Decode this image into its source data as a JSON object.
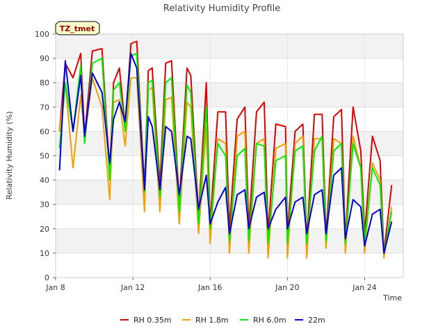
{
  "chart_data": {
    "type": "line",
    "title": "Relativity Humidity Profile",
    "xlabel": "Time",
    "ylabel": "Relativity Humidity (%)",
    "badge": "TZ_tmet",
    "ylim": [
      0,
      100
    ],
    "yticks": [
      "0",
      "10",
      "20",
      "30",
      "40",
      "50",
      "60",
      "70",
      "80",
      "90",
      "100"
    ],
    "xlim_days": [
      0,
      18
    ],
    "xticks": [
      {
        "day": 0,
        "label": "Jan 8"
      },
      {
        "day": 4,
        "label": "Jan 12"
      },
      {
        "day": 8,
        "label": "Jan 16"
      },
      {
        "day": 12,
        "label": "Jan 20"
      },
      {
        "day": 16,
        "label": "Jan 24"
      }
    ],
    "grid": true,
    "legend_position": "bottom",
    "series": [
      {
        "name": "RH 0.35m",
        "color": "#dd0000",
        "x": [
          0.2,
          0.5,
          0.9,
          1.3,
          1.5,
          1.9,
          2.4,
          2.8,
          3.0,
          3.3,
          3.6,
          3.9,
          4.2,
          4.6,
          4.8,
          5.0,
          5.4,
          5.7,
          6.0,
          6.4,
          6.8,
          7.0,
          7.4,
          7.8,
          8.0,
          8.4,
          8.8,
          9.0,
          9.4,
          9.8,
          10.0,
          10.4,
          10.8,
          11.0,
          11.4,
          11.9,
          12.0,
          12.4,
          12.8,
          13.0,
          13.4,
          13.8,
          14.0,
          14.4,
          14.8,
          15.0,
          15.4,
          15.8,
          16.0,
          16.4,
          16.8,
          17.0,
          17.4
        ],
        "y": [
          60,
          88,
          82,
          92,
          58,
          93,
          94,
          43,
          80,
          86,
          62,
          96,
          97,
          37,
          85,
          86,
          38,
          88,
          89,
          30,
          86,
          83,
          25,
          80,
          22,
          68,
          68,
          20,
          65,
          70,
          20,
          68,
          72,
          18,
          63,
          62,
          18,
          60,
          63,
          15,
          67,
          67,
          17,
          66,
          69,
          15,
          70,
          52,
          18,
          58,
          48,
          10,
          38
        ]
      },
      {
        "name": "RH 1.8m",
        "color": "#f0a000",
        "x": [
          0.2,
          0.5,
          0.9,
          1.3,
          1.5,
          1.9,
          2.4,
          2.8,
          3.0,
          3.3,
          3.6,
          3.9,
          4.2,
          4.6,
          4.8,
          5.0,
          5.4,
          5.7,
          6.0,
          6.4,
          6.8,
          7.0,
          7.4,
          7.8,
          8.0,
          8.4,
          8.8,
          9.0,
          9.4,
          9.8,
          10.0,
          10.4,
          10.8,
          11.0,
          11.4,
          11.9,
          12.0,
          12.4,
          12.8,
          13.0,
          13.4,
          13.8,
          14.0,
          14.4,
          14.8,
          15.0,
          15.4,
          15.8,
          16.0,
          16.4,
          16.8,
          17.0,
          17.4
        ],
        "y": [
          60,
          80,
          45,
          75,
          57,
          82,
          70,
          32,
          72,
          73,
          54,
          82,
          82,
          27,
          77,
          78,
          27,
          73,
          74,
          22,
          72,
          70,
          18,
          62,
          14,
          57,
          55,
          10,
          58,
          60,
          10,
          55,
          57,
          8,
          53,
          55,
          8,
          55,
          58,
          8,
          57,
          57,
          12,
          57,
          55,
          10,
          58,
          45,
          10,
          47,
          40,
          8,
          29
        ]
      },
      {
        "name": "RH 6.0m",
        "color": "#00ee00",
        "x": [
          0.2,
          0.5,
          0.9,
          1.3,
          1.5,
          1.9,
          2.4,
          2.8,
          3.0,
          3.3,
          3.6,
          3.9,
          4.2,
          4.6,
          4.8,
          5.0,
          5.4,
          5.7,
          6.0,
          6.4,
          6.8,
          7.0,
          7.4,
          7.8,
          8.0,
          8.4,
          8.8,
          9.0,
          9.4,
          9.8,
          10.0,
          10.4,
          10.8,
          11.0,
          11.4,
          11.9,
          12.0,
          12.4,
          12.8,
          13.0,
          13.4,
          13.8,
          14.0,
          14.4,
          14.8,
          15.0,
          15.4,
          15.8,
          16.0,
          16.4,
          16.8,
          17.0,
          17.4
        ],
        "y": [
          53,
          80,
          60,
          87,
          55,
          88,
          90,
          40,
          77,
          80,
          60,
          91,
          92,
          35,
          80,
          81,
          33,
          80,
          82,
          27,
          79,
          76,
          22,
          70,
          20,
          55,
          50,
          15,
          50,
          53,
          15,
          55,
          54,
          14,
          48,
          50,
          14,
          52,
          54,
          14,
          52,
          58,
          15,
          52,
          55,
          14,
          55,
          45,
          15,
          45,
          38,
          10,
          27
        ]
      },
      {
        "name": "22m",
        "color": "#0000dd",
        "x": [
          0.2,
          0.5,
          0.9,
          1.3,
          1.5,
          1.9,
          2.4,
          2.8,
          3.0,
          3.3,
          3.6,
          3.9,
          4.2,
          4.6,
          4.8,
          5.0,
          5.4,
          5.7,
          6.0,
          6.4,
          6.8,
          7.0,
          7.4,
          7.8,
          8.0,
          8.4,
          8.8,
          9.0,
          9.4,
          9.8,
          10.0,
          10.4,
          10.8,
          11.0,
          11.4,
          11.9,
          12.0,
          12.4,
          12.8,
          13.0,
          13.4,
          13.8,
          14.0,
          14.4,
          14.8,
          15.0,
          15.4,
          15.8,
          16.0,
          16.4,
          16.8,
          17.0,
          17.4
        ],
        "y": [
          44,
          89,
          60,
          83,
          58,
          84,
          76,
          47,
          65,
          72,
          64,
          92,
          86,
          36,
          66,
          62,
          36,
          62,
          60,
          34,
          58,
          57,
          28,
          42,
          22,
          31,
          37,
          18,
          34,
          36,
          20,
          33,
          35,
          20,
          28,
          33,
          20,
          31,
          33,
          18,
          34,
          36,
          18,
          42,
          45,
          16,
          32,
          29,
          13,
          26,
          28,
          10,
          23
        ]
      }
    ]
  }
}
